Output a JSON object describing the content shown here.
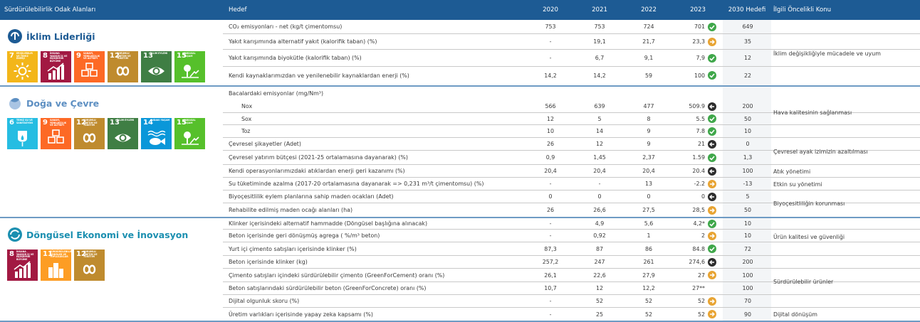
{
  "header": {
    "focus_areas": "Sürdürülebilirlik Odak Alanları",
    "target": "Hedef",
    "y2020": "2020",
    "y2021": "2021",
    "y2022": "2022",
    "y2023": "2023",
    "target2030": "2030 Hedefi",
    "priority": "İlgili Öncelikli Konu"
  },
  "colors": {
    "header": "#1d5b94",
    "ok": "#3fa74a",
    "warn": "#e8a433",
    "bad": "#2d2d2d",
    "separator": "#6e9bc4"
  },
  "areas": [
    {
      "title": "İklim Liderliği",
      "color": "#1d5b94",
      "sdgs": [
        {
          "num": "7",
          "title": "Erişilebilir ve Temiz Enerji",
          "color": "#f3b61a",
          "icon": "sun-icon"
        },
        {
          "num": "8",
          "title": "İnsana Yakışır İş ve Ekonomik Büyüme",
          "color": "#a21942",
          "icon": "growth-chart-icon"
        },
        {
          "num": "9",
          "title": "Sanayi, Yenilikçilik ve Altyapı",
          "color": "#fd6925",
          "icon": "cubes-icon"
        },
        {
          "num": "12",
          "title": "Sorumlu Üretim ve Tüketim",
          "color": "#bf8b2e",
          "icon": "infinity-icon"
        },
        {
          "num": "13",
          "title": "İklim Eylemi",
          "color": "#3f7e44",
          "icon": "eye-globe-icon"
        },
        {
          "num": "15",
          "title": "Karasal Yaşam",
          "color": "#56c02b",
          "icon": "tree-icon"
        }
      ]
    },
    {
      "title": "Doğa ve Çevre",
      "color": "#5d8fc2",
      "sdgs": [
        {
          "num": "6",
          "title": "Temiz Su ve Sanitasyon",
          "color": "#26bde2",
          "icon": "water-drop-icon"
        },
        {
          "num": "9",
          "title": "Sanayi, Yenilikçilik ve Altyapı",
          "color": "#fd6925",
          "icon": "cubes-icon"
        },
        {
          "num": "12",
          "title": "Sorumlu Üretim ve Tüketim",
          "color": "#bf8b2e",
          "icon": "infinity-icon"
        },
        {
          "num": "13",
          "title": "İklim Eylemi",
          "color": "#3f7e44",
          "icon": "eye-globe-icon"
        },
        {
          "num": "14",
          "title": "Sudaki Yaşam",
          "color": "#0a97d9",
          "icon": "fish-icon"
        },
        {
          "num": "15",
          "title": "Karasal Yaşam",
          "color": "#56c02b",
          "icon": "tree-icon"
        }
      ]
    },
    {
      "title": "Döngüsel Ekonomi ve İnovasyon",
      "color": "#1b8fb0",
      "sdgs": [
        {
          "num": "8",
          "title": "İnsana Yakışır İş ve Ekonomik Büyüme",
          "color": "#a21942",
          "icon": "growth-chart-icon"
        },
        {
          "num": "11",
          "title": "Sürdürülebilir Şehirler ve Topluluklar",
          "color": "#fd9d24",
          "icon": "buildings-icon"
        },
        {
          "num": "12",
          "title": "Sorumlu Üretim ve Tüketim",
          "color": "#bf8b2e",
          "icon": "infinity-icon"
        }
      ]
    }
  ],
  "rows": [
    {
      "label": "CO₂ emisyonları - net (kg/t çimentomsu)",
      "v2020": "753",
      "v2021": "753",
      "v2022": "724",
      "v2023": "701",
      "status": "check-icon",
      "v2030": "649"
    },
    {
      "label": "Yakıt karışımında alternatif yakıt (kalorifik taban) (%)",
      "v2020": "-",
      "v2021": "19,1",
      "v2022": "21,7",
      "v2023": "23,3",
      "status": "arrow-right-icon",
      "v2030": "35"
    },
    {
      "label": "Yakıt karışımında biyokütle (kalorifik taban) (%)",
      "v2020": "-",
      "v2021": "6,7",
      "v2022": "9,1",
      "v2023": "7,9",
      "status": "check-icon",
      "v2030": "12"
    },
    {
      "label": "Kendi kaynaklarımızdan ve yenilenebilir kaynaklardan enerji (%)",
      "v2020": "14,2",
      "v2021": "14,2",
      "v2022": "59",
      "v2023": "100",
      "status": "check-icon",
      "v2030": "22"
    },
    {
      "label": "Bacalardaki emisyonlar (mg/Nm³)",
      "v2020": "",
      "v2021": "",
      "v2022": "",
      "v2023": "",
      "status": "",
      "v2030": ""
    },
    {
      "label": "Nox",
      "sub": true,
      "v2020": "566",
      "v2021": "639",
      "v2022": "477",
      "v2023": "509.9",
      "status": "arrow-left-icon",
      "v2030": "200"
    },
    {
      "label": "Sox",
      "sub": true,
      "v2020": "12",
      "v2021": "5",
      "v2022": "8",
      "v2023": "5.5",
      "status": "check-icon",
      "v2030": "50"
    },
    {
      "label": "Toz",
      "sub": true,
      "v2020": "10",
      "v2021": "14",
      "v2022": "9",
      "v2023": "7.8",
      "status": "check-icon",
      "v2030": "10"
    },
    {
      "label": "Çevresel şikayetler (Adet)",
      "v2020": "26",
      "v2021": "12",
      "v2022": "9",
      "v2023": "21",
      "status": "arrow-left-icon",
      "v2030": "0"
    },
    {
      "label": "Çevresel yatırım bütçesi (2021-25 ortalamasına dayanarak) (%)",
      "v2020": "0,9",
      "v2021": "1,45",
      "v2022": "2,37",
      "v2023": "1.59",
      "status": "check-icon",
      "v2030": "1,3"
    },
    {
      "label": "Kendi operasyonlarımızdaki atıklardan enerji geri kazanımı (%)",
      "v2020": "20,4",
      "v2021": "20,4",
      "v2022": "20,4",
      "v2023": "20.4",
      "status": "arrow-left-icon",
      "v2030": "100"
    },
    {
      "label": "Su tüketiminde azalma (2017-20 ortalamasına dayanarak => 0,231 m³/t çimentomsu) (%)",
      "v2020": "-",
      "v2021": "-",
      "v2022": "13",
      "v2023": "-2.2",
      "status": "arrow-right-icon",
      "v2030": "-13"
    },
    {
      "label": "Biyoçesitlilik eylem planlarına sahip maden ocakları (Adet)",
      "v2020": "0",
      "v2021": "0",
      "v2022": "0",
      "v2023": "0",
      "status": "arrow-left-icon",
      "v2030": "5"
    },
    {
      "label": "Rehabilite edilmiş maden ocağı alanları (ha)",
      "v2020": "26",
      "v2021": "26,6",
      "v2022": "27,5",
      "v2023": "28,5",
      "status": "arrow-right-icon",
      "v2030": "50"
    },
    {
      "label": "Klinker içerisindeki alternatif hammadde (Döngüsel başlığına alınacak)",
      "v2020": "-",
      "v2021": "4,9",
      "v2022": "5,6",
      "v2023": "4,2*",
      "status": "check-icon",
      "v2030": "10"
    },
    {
      "label": "Beton içerisinde geri dönüşmüş agrega ( %/m³ beton)",
      "v2020": "-",
      "v2021": "0,92",
      "v2022": "1",
      "v2023": "2",
      "status": "arrow-right-icon",
      "v2030": "10"
    },
    {
      "label": "Yurt içi çimento satışları içerisinde klinker (%)",
      "v2020": "87,3",
      "v2021": "87",
      "v2022": "86",
      "v2023": "84.8",
      "status": "check-icon",
      "v2030": "72"
    },
    {
      "label": "Beton içerisinde klinker (kg)",
      "v2020": "257,2",
      "v2021": "247",
      "v2022": "261",
      "v2023": "274,6",
      "status": "arrow-left-icon",
      "v2030": "200"
    },
    {
      "label": "Çimento satışları içindeki sürdürülebilir çimento (GreenForCement) oranı (%)",
      "v2020": "26,1",
      "v2021": "22,6",
      "v2022": "27,9",
      "v2023": "27",
      "status": "arrow-right-icon",
      "v2030": "100"
    },
    {
      "label": "Beton satışlarındaki sürdürülebilir beton (GreenForConcrete) oranı (%)",
      "v2020": "10,7",
      "v2021": "12",
      "v2022": "12,2",
      "v2023": "27**",
      "status": "",
      "v2030": "100"
    },
    {
      "label": "Dijital olgunluk skoru (%)",
      "v2020": "-",
      "v2021": "52",
      "v2022": "52",
      "v2023": "52",
      "status": "arrow-right-icon",
      "v2030": "70"
    },
    {
      "label": "Üretim varlıkları içerisinde yapay zeka kapsamı (%)",
      "v2020": "-",
      "v2021": "25",
      "v2022": "52",
      "v2023": "52",
      "status": "arrow-right-icon",
      "v2030": "90"
    }
  ],
  "topics": [
    "İklim değişikliğiyle mücadele ve uyum",
    "Hava kalitesinin sağlanması",
    "Çevresel ayak izimizin azaltılması",
    "Atık yönetimi",
    "Etkin su yönetimi",
    "Biyoçesitliliğin korunması",
    "Ürün kalitesi ve güvenliği",
    "Sürdürülebilir ürünler",
    "Dijital dönüşüm"
  ]
}
